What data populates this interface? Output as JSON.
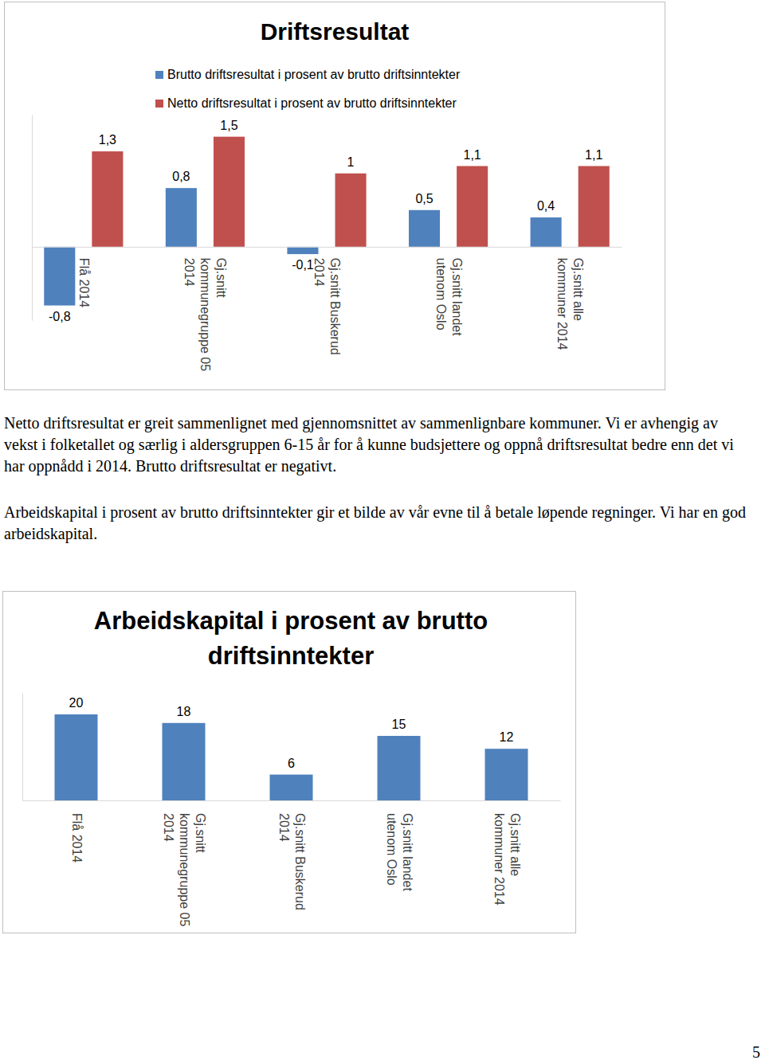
{
  "chart_data": [
    {
      "type": "bar",
      "title": "Driftsresultat",
      "categories": [
        "Flå 2014",
        "Gj.snitt kommunegruppe 05 2014",
        "Gj.snitt Buskerud 2014",
        "Gj.snitt landet utenom Oslo",
        "Gj.snitt alle kommuner 2014"
      ],
      "series": [
        {
          "name": "Brutto driftsresultat i prosent av brutto driftsinntekter",
          "color": "#4f81bd",
          "values": [
            -0.8,
            0.8,
            -0.1,
            0.5,
            0.4
          ],
          "value_labels": [
            "-0,8",
            "0,8",
            "-0,1",
            "0,5",
            "0,4"
          ]
        },
        {
          "name": "Netto driftsresultat i prosent av brutto driftsinntekter",
          "color": "#c0504d",
          "values": [
            1.3,
            1.5,
            1,
            1.1,
            1.1
          ],
          "value_labels": [
            "1,3",
            "1,5",
            "1",
            "1,1",
            "1,1"
          ]
        }
      ],
      "ylim": [
        -1,
        1.8
      ],
      "data_labels": true,
      "tick_labels": "x",
      "legend": "top"
    },
    {
      "type": "bar",
      "title": "Arbeidskapital i prosent av brutto driftsinntekter",
      "categories": [
        "Flå 2014",
        "Gj.snitt kommunegruppe 05 2014",
        "Gj.snitt Buskerud 2014",
        "Gj.snitt landet utenom Oslo",
        "Gj.snitt alle kommuner 2014"
      ],
      "values": [
        20,
        18,
        6,
        15,
        12
      ],
      "color": "#4f81bd",
      "ylim": [
        0,
        25
      ],
      "data_labels": true,
      "tick_labels": "x"
    }
  ],
  "paragraphs": [
    "Netto driftsresultat er greit sammenlignet med gjennomsnittet av  sammenlignbare kommuner. Vi er avhengig av vekst i folketallet og særlig i aldersgruppen 6-15 år for å kunne budsjettere og oppnå driftsresultat bedre enn det vi har oppnådd i 2014. Brutto driftsresultat er negativt.",
    "Arbeidskapital i prosent av brutto driftsinntekter gir et bilde av vår evne til å betale løpende regninger. Vi har en god arbeidskapital."
  ],
  "page_number": "5"
}
